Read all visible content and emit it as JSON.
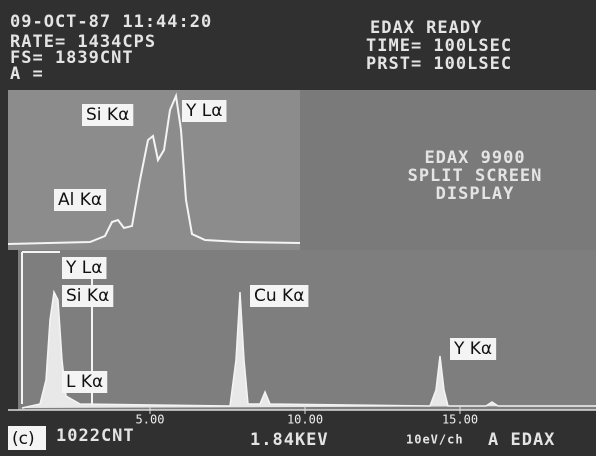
{
  "header": {
    "date_time": "09-OCT-87 11:44:20",
    "status": "EDAX READY",
    "rate": "RATE= 1434CPS",
    "time": "TIME= 100LSEC",
    "fs": "FS= 1839CNT",
    "prst": "PRST= 100LSEC",
    "a": "A ="
  },
  "upper_panel": {
    "labels": [
      "Si Kα",
      "Y Lα",
      "Al Kα"
    ]
  },
  "info_text": [
    "EDAX 9900",
    "SPLIT SCREEN",
    "DISPLAY"
  ],
  "lower_panel": {
    "labels": [
      "Y Lα",
      "Si Kα",
      "L Kα",
      "Cu Kα",
      "Y Kα"
    ],
    "ticks": [
      {
        "value": 5,
        "label": "5.00"
      },
      {
        "value": 10,
        "label": "10.00"
      },
      {
        "value": 15,
        "label": "15.00"
      }
    ]
  },
  "footer": {
    "panel": "(c)",
    "count": "1022CNT",
    "energy": "1.84KEV",
    "scale": "10eV/ch",
    "source": "A EDAX"
  }
}
